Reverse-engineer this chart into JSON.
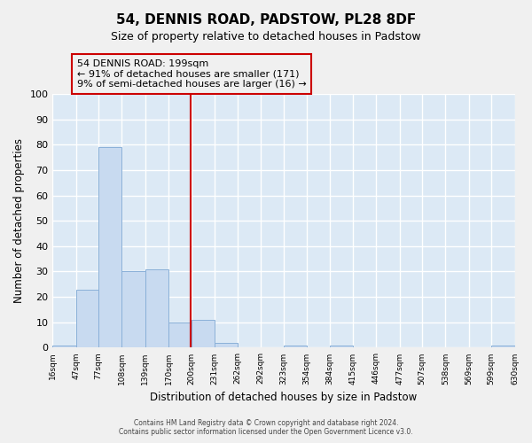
{
  "title": "54, DENNIS ROAD, PADSTOW, PL28 8DF",
  "subtitle": "Size of property relative to detached houses in Padstow",
  "xlabel": "Distribution of detached houses by size in Padstow",
  "ylabel": "Number of detached properties",
  "bin_edges": [
    16,
    47,
    77,
    108,
    139,
    170,
    200,
    231,
    262,
    292,
    323,
    354,
    384,
    415,
    446,
    477,
    507,
    538,
    569,
    599,
    630
  ],
  "bin_labels": [
    "16sqm",
    "47sqm",
    "77sqm",
    "108sqm",
    "139sqm",
    "170sqm",
    "200sqm",
    "231sqm",
    "262sqm",
    "292sqm",
    "323sqm",
    "354sqm",
    "384sqm",
    "415sqm",
    "446sqm",
    "477sqm",
    "507sqm",
    "538sqm",
    "569sqm",
    "599sqm",
    "630sqm"
  ],
  "counts": [
    1,
    23,
    79,
    30,
    31,
    10,
    11,
    2,
    0,
    0,
    1,
    0,
    1,
    0,
    0,
    0,
    0,
    0,
    0,
    1
  ],
  "bar_color": "#c8daf0",
  "bar_edgecolor": "#8ab0d8",
  "ylim": [
    0,
    100
  ],
  "yticks": [
    0,
    10,
    20,
    30,
    40,
    50,
    60,
    70,
    80,
    90,
    100
  ],
  "vline_x": 199,
  "vline_color": "#cc0000",
  "annotation_line1": "54 DENNIS ROAD: 199sqm",
  "annotation_line2": "← 91% of detached houses are smaller (171)",
  "annotation_line3": "9% of semi-detached houses are larger (16) →",
  "annotation_box_edgecolor": "#cc0000",
  "footer_line1": "Contains HM Land Registry data © Crown copyright and database right 2024.",
  "footer_line2": "Contains public sector information licensed under the Open Government Licence v3.0.",
  "fig_background_color": "#f0f0f0",
  "plot_background_color": "#dce9f5",
  "grid_color": "#ffffff",
  "title_fontsize": 11,
  "subtitle_fontsize": 9
}
